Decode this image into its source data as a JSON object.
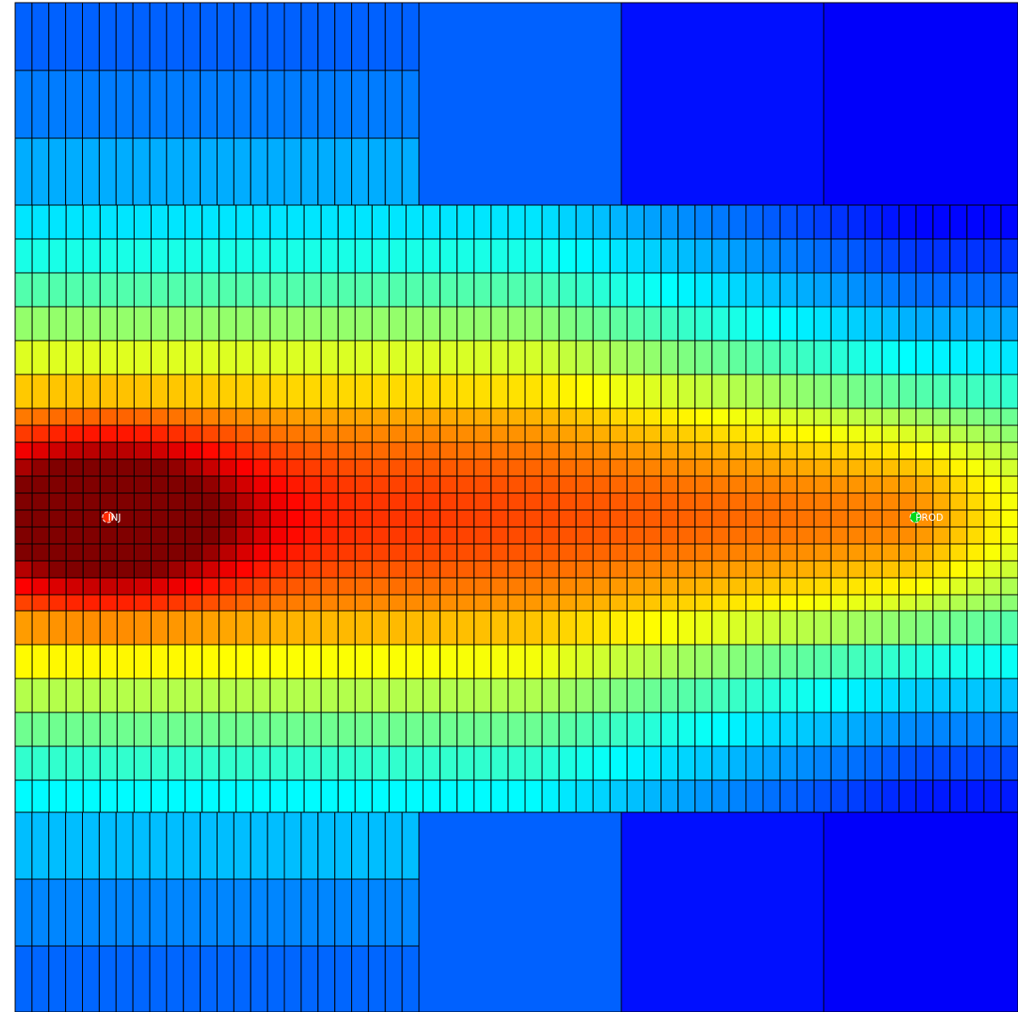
{
  "view": {
    "colormap": "jet",
    "background": "#ffffff",
    "cell_border_color": "#000000"
  },
  "wells": [
    {
      "name": "INJ",
      "type": "injector",
      "icon": "injector-well-icon",
      "marker_color": "#ff2a00"
    },
    {
      "name": "PROD",
      "type": "producer",
      "icon": "producer-well-icon",
      "marker_color": "#00d81a"
    }
  ]
}
